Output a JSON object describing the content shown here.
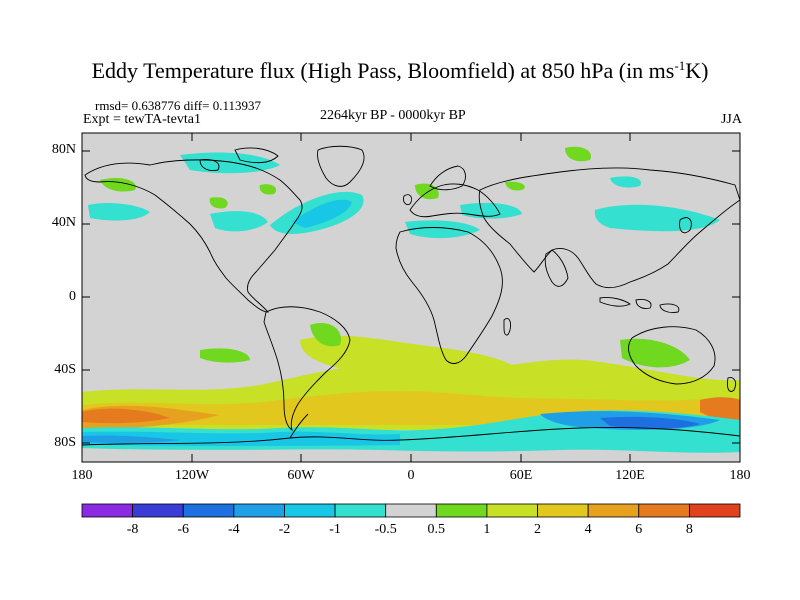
{
  "title_main": "Eddy Temperature flux (High Pass, Bloomfield) at 850 hPa (in ms",
  "title_sup": "-1",
  "title_end": "K)",
  "stats": "rmsd= 0.638776 diff= 0.113937",
  "expt": "Expt = tewTA-tevta1",
  "period": "2264kyr BP - 0000kyr BP",
  "season": "JJA",
  "lat_labels": [
    "80N",
    "40N",
    "0",
    "40S",
    "80S"
  ],
  "lon_labels": [
    "180",
    "120W",
    "60W",
    "0",
    "60E",
    "120E",
    "180"
  ],
  "colorbar": {
    "labels": [
      "-8",
      "-6",
      "-4",
      "-2",
      "-1",
      "-0.5",
      "0.5",
      "1",
      "2",
      "4",
      "6",
      "8"
    ],
    "colors": [
      "#8a2be2",
      "#3b3bd6",
      "#1e6fe0",
      "#1e9fe6",
      "#18c6e6",
      "#34e0cf",
      "#d3d3d3",
      "#6fd81f",
      "#c8e026",
      "#e2c81e",
      "#e6a21e",
      "#e67a1e",
      "#e0421e"
    ]
  },
  "map": {
    "background": "#d3d3d3",
    "lat_range": [
      -90,
      90
    ],
    "lon_range": [
      -180,
      180
    ]
  }
}
